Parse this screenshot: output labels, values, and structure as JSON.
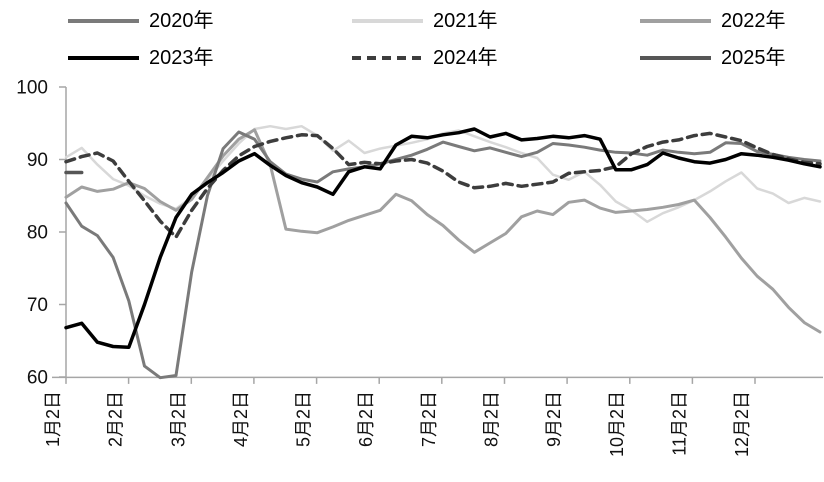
{
  "chart_data": {
    "type": "line",
    "title": "",
    "legend_position": "top",
    "grid": false,
    "axis_color": "#a6a6a6",
    "text_color": "#111111",
    "y_axis": {
      "ticks": [
        60,
        70,
        80,
        90,
        100
      ],
      "range": [
        60,
        100
      ]
    },
    "x_axis": {
      "tick_labels": [
        "1月2日",
        "2月2日",
        "3月2日",
        "4月2日",
        "5月2日",
        "6月2日",
        "7月2日",
        "8月2日",
        "9月2日",
        "10月2日",
        "11月2日",
        "12月2日"
      ],
      "tick_label_rotation": -90
    },
    "series": [
      {
        "name": "2020年",
        "color": "#7a7a7a",
        "dash": false,
        "width": 3,
        "values": [
          84.0,
          80.8,
          79.5,
          76.5,
          70.5,
          61.5,
          59.9,
          60.2,
          74.5,
          85.0,
          91.5,
          93.8,
          92.8,
          89.7,
          88.0,
          87.3,
          86.9,
          88.3,
          88.7,
          89.0,
          89.4,
          90.0,
          90.6,
          91.4,
          92.4,
          91.8,
          91.2,
          91.6,
          91.0,
          90.4,
          91.0,
          92.2,
          92.0,
          91.7,
          91.3,
          91.0,
          90.9,
          90.6,
          91.3,
          91.0,
          90.8,
          91.0,
          92.3,
          92.2,
          91.1,
          90.7,
          90.3,
          90.0,
          89.8
        ]
      },
      {
        "name": "2021年",
        "color": "#d8d8d8",
        "dash": false,
        "width": 2.5,
        "values": [
          90.3,
          91.6,
          89.3,
          87.3,
          86.4,
          85.0,
          83.9,
          83.2,
          84.8,
          87.2,
          89.8,
          92.2,
          94.2,
          94.6,
          94.2,
          94.6,
          93.3,
          91.2,
          92.6,
          90.9,
          91.5,
          91.9,
          92.3,
          92.8,
          93.6,
          94.0,
          93.2,
          92.4,
          91.7,
          90.9,
          90.2,
          87.9,
          87.2,
          88.3,
          86.5,
          84.2,
          83.0,
          81.4,
          82.6,
          83.4,
          84.4,
          85.6,
          87.0,
          88.2,
          86.0,
          85.3,
          84.0,
          84.7,
          84.2
        ]
      },
      {
        "name": "2022年",
        "color": "#a0a0a0",
        "dash": false,
        "width": 3,
        "values": [
          84.8,
          86.2,
          85.6,
          85.9,
          86.8,
          86.0,
          84.2,
          83.0,
          84.5,
          87.5,
          90.5,
          92.8,
          94.1,
          89.3,
          80.4,
          80.1,
          79.9,
          80.7,
          81.6,
          82.3,
          83.0,
          85.2,
          84.3,
          82.4,
          80.9,
          78.9,
          77.2,
          78.5,
          79.8,
          82.1,
          82.9,
          82.4,
          84.1,
          84.4,
          83.3,
          82.7,
          82.9,
          83.1,
          83.4,
          83.8,
          84.4,
          82.0,
          79.3,
          76.4,
          73.9,
          72.1,
          69.6,
          67.5,
          66.2
        ]
      },
      {
        "name": "2023年",
        "color": "#000000",
        "dash": false,
        "width": 3.5,
        "values": [
          66.8,
          67.4,
          64.8,
          64.2,
          64.1,
          70.0,
          76.5,
          82.0,
          85.2,
          86.8,
          88.2,
          89.8,
          90.8,
          89.2,
          87.8,
          86.8,
          86.2,
          85.2,
          88.3,
          89.0,
          88.7,
          92.0,
          93.2,
          93.0,
          93.4,
          93.7,
          94.2,
          93.1,
          93.6,
          92.7,
          92.9,
          93.2,
          93.0,
          93.3,
          92.8,
          88.6,
          88.6,
          89.3,
          90.9,
          90.2,
          89.7,
          89.5,
          90.0,
          90.8,
          90.6,
          90.3,
          89.9,
          89.4,
          89.0
        ]
      },
      {
        "name": "2024年",
        "color": "#3d3d3d",
        "dash": true,
        "width": 3.5,
        "values": [
          89.7,
          90.4,
          90.9,
          89.8,
          87.0,
          84.3,
          81.5,
          79.3,
          83.0,
          86.0,
          88.5,
          90.5,
          91.8,
          92.5,
          93.0,
          93.4,
          93.3,
          91.5,
          89.3,
          89.6,
          89.4,
          89.8,
          90.0,
          89.5,
          88.4,
          86.9,
          86.1,
          86.3,
          86.7,
          86.3,
          86.6,
          86.9,
          88.1,
          88.3,
          88.5,
          89.0,
          90.8,
          91.8,
          92.4,
          92.7,
          93.3,
          93.6,
          93.1,
          92.6,
          91.6,
          90.7,
          90.1,
          89.6,
          89.4
        ]
      },
      {
        "name": "2025年",
        "color": "#565656",
        "dash": false,
        "width": 3.5,
        "values": [
          88.2,
          88.2
        ]
      }
    ]
  }
}
